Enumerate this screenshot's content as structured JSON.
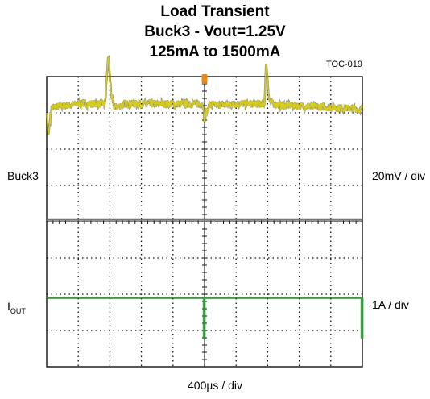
{
  "title": {
    "line1": "Load Transient",
    "line2": "Buck3 - Vout=1.25V",
    "line3": "125mA to 1500mA"
  },
  "figure_id": "TOC-019",
  "labels": {
    "ch1_name": "Buck3",
    "ch2_name_main": "I",
    "ch2_name_sub": "OUT",
    "ch1_scale": "20mV / div",
    "ch2_scale": "1A / div",
    "time_scale": "400µs / div"
  },
  "colors": {
    "voltage_trace": "#d6cc1f",
    "current_trace": "#2e9e35",
    "grid": "#111111",
    "trigger_marker": "#e8891a"
  },
  "chart_data": {
    "type": "line",
    "title": "Load Transient / Buck3 - Vout=1.25V / 125mA to 1500mA",
    "x_divisions": 10,
    "y_divisions": 8,
    "grid": true,
    "series": [
      {
        "name": "Buck3",
        "unit": "20mV / div",
        "x_div": [
          0,
          0.05,
          0.15,
          1.0,
          1.85,
          1.95,
          2.05,
          2.15,
          2.5,
          3.0,
          4.0,
          4.95,
          5.0,
          5.05,
          5.15,
          6.0,
          6.9,
          6.95,
          7.05,
          7.15,
          7.5,
          8.0,
          9.0,
          10.0
        ],
        "y_div": [
          3.0,
          2.35,
          3.15,
          3.25,
          3.25,
          4.6,
          3.45,
          3.15,
          3.25,
          3.25,
          3.25,
          3.25,
          2.75,
          3.0,
          3.2,
          3.25,
          3.25,
          4.4,
          3.35,
          3.25,
          3.2,
          3.2,
          3.15,
          3.1
        ]
      },
      {
        "name": "IOUT",
        "unit": "1A / div",
        "x_div": [
          0,
          4.9,
          4.98,
          5.0,
          9.9,
          9.98,
          10.0
        ],
        "y_div": [
          -2.1,
          -2.1,
          -3.2,
          -2.1,
          -2.1,
          -3.2,
          -2.1
        ]
      }
    ],
    "x_label": "400µs / div"
  }
}
